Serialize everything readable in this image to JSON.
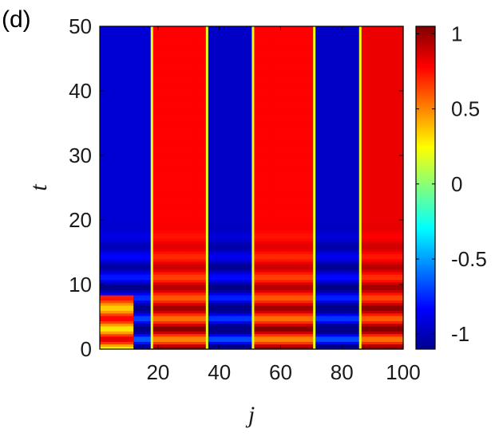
{
  "chart_data": {
    "type": "heatmap",
    "panel_label": "(d)",
    "title": "",
    "xlabel": "j",
    "ylabel": "t",
    "xlim": [
      1,
      100
    ],
    "ylim": [
      0,
      50
    ],
    "xticks": [
      20,
      40,
      60,
      80,
      100
    ],
    "yticks": [
      0,
      10,
      20,
      30,
      40,
      50
    ],
    "colorbar": {
      "range": [
        -1.1,
        1.05
      ],
      "ticks": [
        1,
        0.5,
        0,
        -0.5,
        -1
      ],
      "tick_labels": [
        "1",
        "0.5",
        "0",
        "-0.5",
        "-1"
      ],
      "colormap": "jet"
    },
    "domains": [
      {
        "j_start": 1,
        "j_end": 18,
        "sign": -1,
        "level": 0.92
      },
      {
        "j_start": 18,
        "j_end": 36,
        "sign": 1,
        "level": 0.78
      },
      {
        "j_start": 36,
        "j_end": 51,
        "sign": -1,
        "level": 0.95
      },
      {
        "j_start": 51,
        "j_end": 71,
        "sign": 1,
        "level": 0.78
      },
      {
        "j_start": 71,
        "j_end": 86,
        "sign": -1,
        "level": 0.95
      },
      {
        "j_start": 86,
        "j_end": 100,
        "sign": 1,
        "level": 0.82
      }
    ],
    "oscillation": {
      "until_t": 20,
      "period_t": 3.2,
      "amplitude": 0.32
    },
    "initial_wall_j": 12,
    "initial_wall_until_t": 8.5,
    "grid": false
  }
}
